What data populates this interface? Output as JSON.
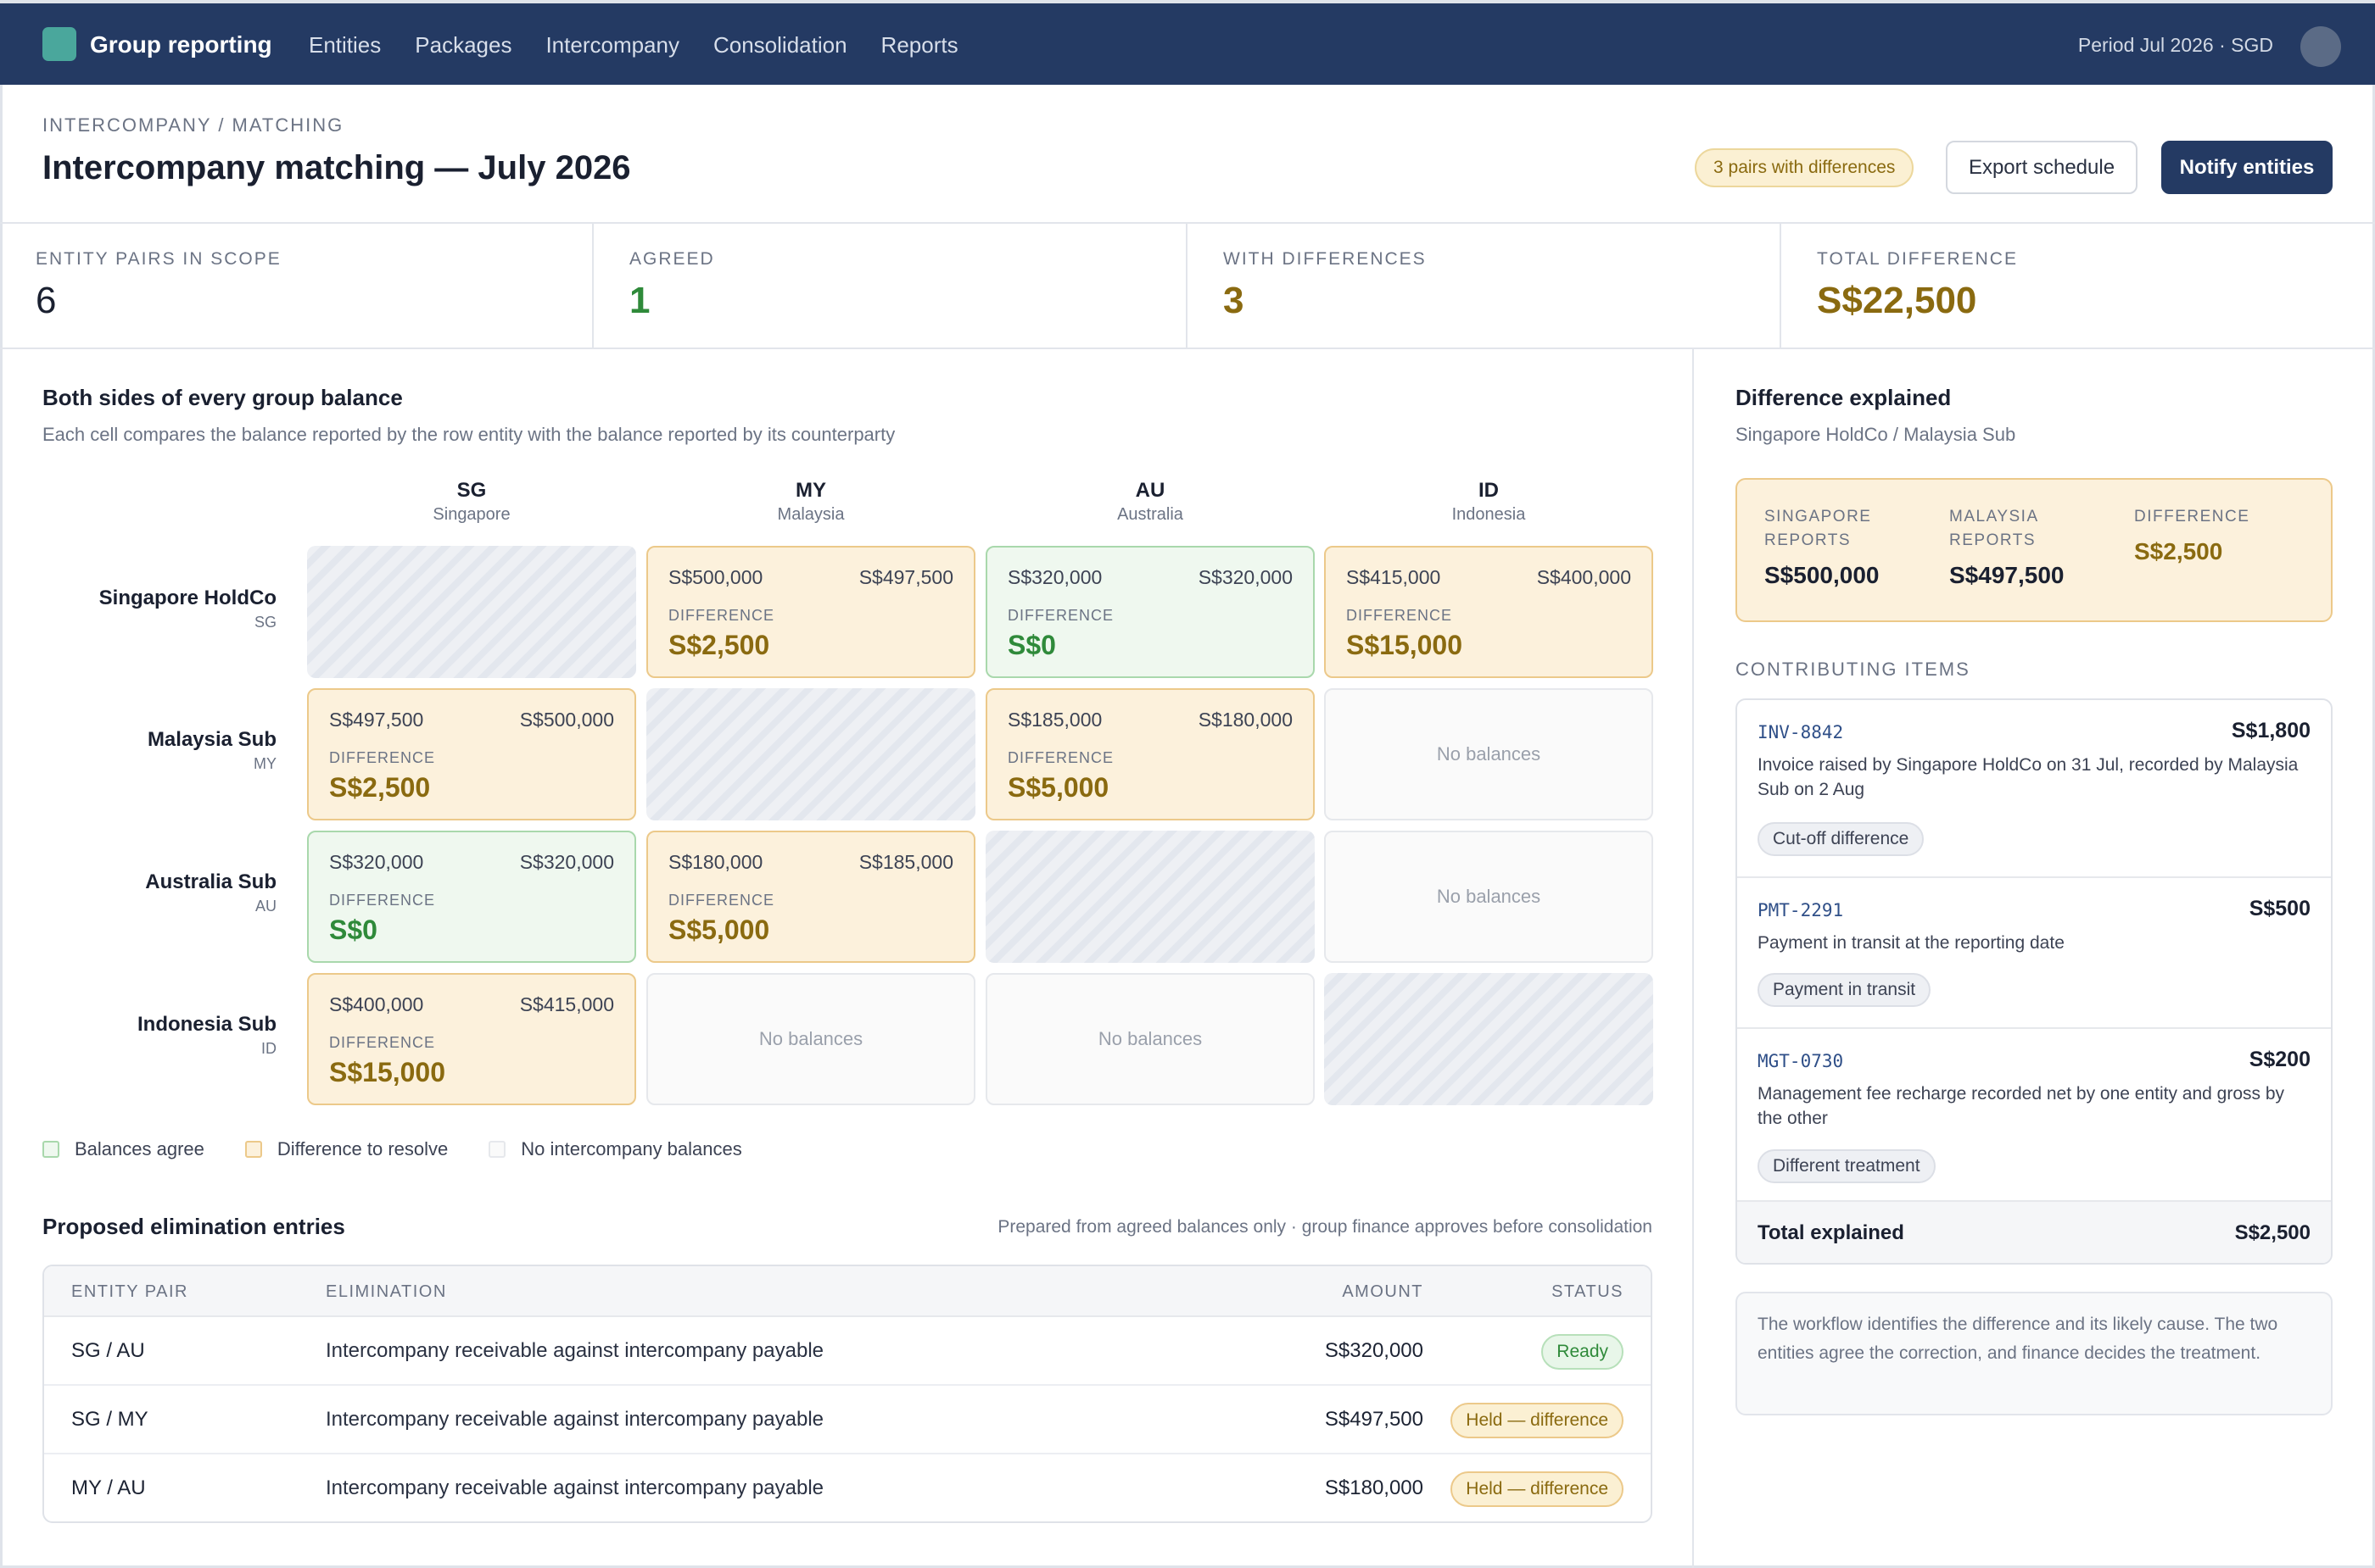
{
  "app": {
    "title": "Group reporting",
    "period": "Period Jul 2026 · SGD"
  },
  "nav": [
    "Entities",
    "Packages",
    "Intercompany",
    "Consolidation",
    "Reports"
  ],
  "header": {
    "breadcrumb": "INTERCOMPANY / MATCHING",
    "title": "Intercompany matching — July 2026",
    "badge": "3 pairs with differences",
    "export_label": "Export schedule",
    "notify_label": "Notify entities"
  },
  "stats": [
    {
      "label": "ENTITY PAIRS IN SCOPE",
      "value": "6"
    },
    {
      "label": "AGREED",
      "value": "1"
    },
    {
      "label": "WITH DIFFERENCES",
      "value": "3"
    },
    {
      "label": "TOTAL DIFFERENCE",
      "value": "S$22,500"
    }
  ],
  "matrix": {
    "title": "Both sides of every group balance",
    "subtitle": "Each cell compares the balance reported by the row entity with the balance reported by its counterparty",
    "columns": [
      {
        "code": "SG",
        "name": "Singapore"
      },
      {
        "code": "MY",
        "name": "Malaysia"
      },
      {
        "code": "AU",
        "name": "Australia"
      },
      {
        "code": "ID",
        "name": "Indonesia"
      }
    ],
    "rows": [
      {
        "name": "Singapore HoldCo",
        "code": "SG"
      },
      {
        "name": "Malaysia Sub",
        "code": "MY"
      },
      {
        "name": "Australia Sub",
        "code": "AU"
      },
      {
        "name": "Indonesia Sub",
        "code": "ID"
      }
    ],
    "diff_label": "DIFFERENCE",
    "no_balances": "No balances",
    "cells": {
      "sg_my": {
        "left": "S$500,000",
        "right": "S$497,500",
        "diff": "S$2,500"
      },
      "sg_au": {
        "left": "S$320,000",
        "right": "S$320,000",
        "diff": "S$0"
      },
      "sg_id": {
        "left": "S$415,000",
        "right": "S$400,000",
        "diff": "S$15,000"
      },
      "my_sg": {
        "left": "S$497,500",
        "right": "S$500,000",
        "diff": "S$2,500"
      },
      "my_au": {
        "left": "S$185,000",
        "right": "S$180,000",
        "diff": "S$5,000"
      },
      "au_sg": {
        "left": "S$320,000",
        "right": "S$320,000",
        "diff": "S$0"
      },
      "au_my": {
        "left": "S$180,000",
        "right": "S$185,000",
        "diff": "S$5,000"
      },
      "id_sg": {
        "left": "S$400,000",
        "right": "S$415,000",
        "diff": "S$15,000"
      }
    },
    "legend": [
      "Balances agree",
      "Difference to resolve",
      "No intercompany balances"
    ]
  },
  "eliminations": {
    "title": "Proposed elimination entries",
    "note": "Prepared from agreed balances only · group finance approves before consolidation",
    "headers": [
      "ENTITY PAIR",
      "ELIMINATION",
      "AMOUNT",
      "STATUS"
    ],
    "rows": [
      {
        "pair": "SG / AU",
        "desc": "Intercompany receivable against intercompany payable",
        "amount": "S$320,000",
        "status": "Ready"
      },
      {
        "pair": "SG / MY",
        "desc": "Intercompany receivable against intercompany payable",
        "amount": "S$497,500",
        "status": "Held — difference"
      },
      {
        "pair": "MY / AU",
        "desc": "Intercompany receivable against intercompany payable",
        "amount": "S$180,000",
        "status": "Held — difference"
      }
    ]
  },
  "explain": {
    "title": "Difference explained",
    "subtitle": "Singapore HoldCo / Malaysia Sub",
    "summary": [
      {
        "label": "SINGAPORE REPORTS",
        "value": "S$500,000"
      },
      {
        "label": "MALAYSIA REPORTS",
        "value": "S$497,500"
      },
      {
        "label": "DIFFERENCE",
        "value": "S$2,500"
      }
    ],
    "items_title": "CONTRIBUTING ITEMS",
    "items": [
      {
        "code": "INV-8842",
        "amount": "S$1,800",
        "desc": "Invoice raised by Singapore HoldCo on 31 Jul, recorded by Malaysia Sub on 2 Aug",
        "tag": "Cut-off difference"
      },
      {
        "code": "PMT-2291",
        "amount": "S$500",
        "desc": "Payment in transit at the reporting date",
        "tag": "Payment in transit"
      },
      {
        "code": "MGT-0730",
        "amount": "S$200",
        "desc": "Management fee recharge recorded net by one entity and gross by the other",
        "tag": "Different treatment"
      }
    ],
    "total_label": "Total explained",
    "total_value": "S$2,500",
    "note": "The workflow identifies the difference and its likely cause. The two entities agree the correction, and finance decides the treatment."
  }
}
